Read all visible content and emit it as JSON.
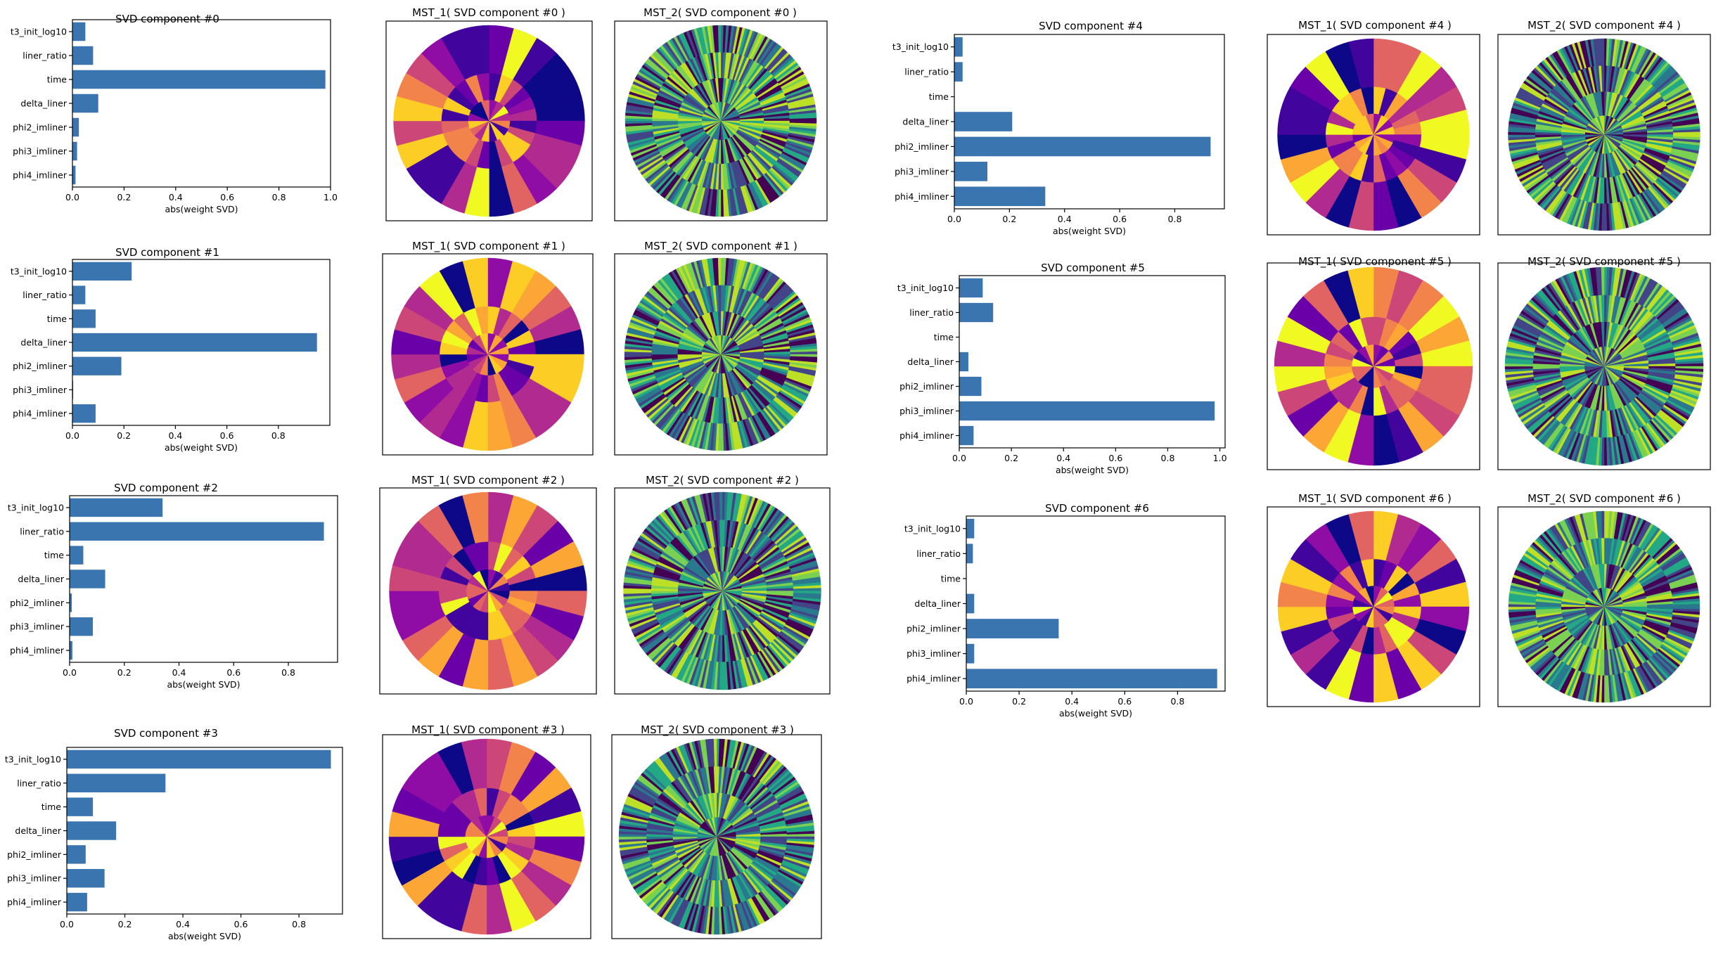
{
  "bar_charts": [
    {
      "title": "SVD component #0",
      "xlabel": "abs(weight SVD)",
      "categories": [
        "t3_init_log10",
        "liner_ratio",
        "time",
        "delta_liner",
        "phi2_imliner",
        "phi3_imliner",
        "phi4_imliner"
      ],
      "values": [
        0.05,
        0.08,
        0.98,
        0.1,
        0.025,
        0.018,
        0.012
      ],
      "ticks": [
        "0.0",
        "0.2",
        "0.4",
        "0.6",
        "0.8",
        "1.0"
      ],
      "tick_values": [
        0,
        0.2,
        0.4,
        0.6,
        0.8,
        1.0
      ]
    },
    {
      "title": "SVD component #1",
      "xlabel": "abs(weight SVD)",
      "categories": [
        "t3_init_log10",
        "liner_ratio",
        "time",
        "delta_liner",
        "phi2_imliner",
        "phi3_imliner",
        "phi4_imliner"
      ],
      "values": [
        0.23,
        0.05,
        0.09,
        0.95,
        0.19,
        0.003,
        0.09
      ],
      "ticks": [
        "0.0",
        "0.2",
        "0.4",
        "0.6",
        "0.8"
      ],
      "tick_values": [
        0,
        0.2,
        0.4,
        0.6,
        0.8
      ]
    },
    {
      "title": "SVD component #2",
      "xlabel": "abs(weight SVD)",
      "categories": [
        "t3_init_log10",
        "liner_ratio",
        "time",
        "delta_liner",
        "phi2_imliner",
        "phi3_imliner",
        "phi4_imliner"
      ],
      "values": [
        0.34,
        0.93,
        0.05,
        0.13,
        0.008,
        0.085,
        0.01
      ],
      "ticks": [
        "0.0",
        "0.2",
        "0.4",
        "0.6",
        "0.8"
      ],
      "tick_values": [
        0,
        0.2,
        0.4,
        0.6,
        0.8
      ]
    },
    {
      "title": "SVD component #3",
      "xlabel": "abs(weight SVD)",
      "categories": [
        "t3_init_log10",
        "liner_ratio",
        "time",
        "delta_liner",
        "phi2_imliner",
        "phi3_imliner",
        "phi4_imliner"
      ],
      "values": [
        0.91,
        0.34,
        0.09,
        0.17,
        0.065,
        0.13,
        0.07
      ],
      "ticks": [
        "0.0",
        "0.2",
        "0.4",
        "0.6",
        "0.8"
      ],
      "tick_values": [
        0,
        0.2,
        0.4,
        0.6,
        0.8
      ]
    },
    {
      "title": "SVD component #4",
      "xlabel": "abs(weight SVD)",
      "categories": [
        "t3_init_log10",
        "liner_ratio",
        "time",
        "delta_liner",
        "phi2_imliner",
        "phi3_imliner",
        "phi4_imliner"
      ],
      "values": [
        0.03,
        0.03,
        0.0,
        0.21,
        0.93,
        0.12,
        0.33
      ],
      "ticks": [
        "0.0",
        "0.2",
        "0.4",
        "0.6",
        "0.8"
      ],
      "tick_values": [
        0,
        0.2,
        0.4,
        0.6,
        0.8
      ]
    },
    {
      "title": "SVD component #5",
      "xlabel": "abs(weight SVD)",
      "categories": [
        "t3_init_log10",
        "liner_ratio",
        "time",
        "delta_liner",
        "phi2_imliner",
        "phi3_imliner",
        "phi4_imliner"
      ],
      "values": [
        0.09,
        0.13,
        0.0,
        0.035,
        0.085,
        0.98,
        0.055
      ],
      "ticks": [
        "0.0",
        "0.2",
        "0.4",
        "0.6",
        "0.8",
        "1.0"
      ],
      "tick_values": [
        0,
        0.2,
        0.4,
        0.6,
        0.8,
        1.0
      ]
    },
    {
      "title": "SVD component #6",
      "xlabel": "abs(weight SVD)",
      "categories": [
        "t3_init_log10",
        "liner_ratio",
        "time",
        "delta_liner",
        "phi2_imliner",
        "phi3_imliner",
        "phi4_imliner"
      ],
      "values": [
        0.03,
        0.025,
        0.0,
        0.03,
        0.35,
        0.03,
        0.95
      ],
      "ticks": [
        "0.0",
        "0.2",
        "0.4",
        "0.6",
        "0.8"
      ],
      "tick_values": [
        0,
        0.2,
        0.4,
        0.6,
        0.8
      ]
    }
  ],
  "mst1_titles": [
    "MST_1( SVD component #0 )",
    "MST_1( SVD component #1 )",
    "MST_1( SVD component #2 )",
    "MST_1( SVD component #3 )",
    "MST_1( SVD component #4 )",
    "MST_1( SVD component #5 )",
    "MST_1( SVD component #6 )"
  ],
  "mst2_titles": [
    "MST_2( SVD component #0 )",
    "MST_2( SVD component #1 )",
    "MST_2( SVD component #2 )",
    "MST_2( SVD component #3 )",
    "MST_2( SVD component #4 )",
    "MST_2( SVD component #5 )",
    "MST_2( SVD component #6 )"
  ],
  "chart_data": [
    {
      "type": "bar",
      "orientation": "horizontal",
      "title": "SVD component #0",
      "xlabel": "abs(weight SVD)",
      "categories": [
        "t3_init_log10",
        "liner_ratio",
        "time",
        "delta_liner",
        "phi2_imliner",
        "phi3_imliner",
        "phi4_imliner"
      ],
      "values": [
        0.05,
        0.08,
        0.98,
        0.1,
        0.025,
        0.018,
        0.012
      ],
      "xlim": [
        0,
        1.0
      ]
    },
    {
      "type": "bar",
      "orientation": "horizontal",
      "title": "SVD component #1",
      "xlabel": "abs(weight SVD)",
      "categories": [
        "t3_init_log10",
        "liner_ratio",
        "time",
        "delta_liner",
        "phi2_imliner",
        "phi3_imliner",
        "phi4_imliner"
      ],
      "values": [
        0.23,
        0.05,
        0.09,
        0.95,
        0.19,
        0.003,
        0.09
      ],
      "xlim": [
        0,
        1.0
      ]
    },
    {
      "type": "bar",
      "orientation": "horizontal",
      "title": "SVD component #2",
      "xlabel": "abs(weight SVD)",
      "categories": [
        "t3_init_log10",
        "liner_ratio",
        "time",
        "delta_liner",
        "phi2_imliner",
        "phi3_imliner",
        "phi4_imliner"
      ],
      "values": [
        0.34,
        0.93,
        0.05,
        0.13,
        0.008,
        0.085,
        0.01
      ],
      "xlim": [
        0,
        0.98
      ]
    },
    {
      "type": "bar",
      "orientation": "horizontal",
      "title": "SVD component #3",
      "xlabel": "abs(weight SVD)",
      "categories": [
        "t3_init_log10",
        "liner_ratio",
        "time",
        "delta_liner",
        "phi2_imliner",
        "phi3_imliner",
        "phi4_imliner"
      ],
      "values": [
        0.91,
        0.34,
        0.09,
        0.17,
        0.065,
        0.13,
        0.07
      ],
      "xlim": [
        0,
        0.95
      ]
    },
    {
      "type": "bar",
      "orientation": "horizontal",
      "title": "SVD component #4",
      "xlabel": "abs(weight SVD)",
      "categories": [
        "t3_init_log10",
        "liner_ratio",
        "time",
        "delta_liner",
        "phi2_imliner",
        "phi3_imliner",
        "phi4_imliner"
      ],
      "values": [
        0.03,
        0.03,
        0.0,
        0.21,
        0.93,
        0.12,
        0.33
      ],
      "xlim": [
        0,
        0.98
      ]
    },
    {
      "type": "bar",
      "orientation": "horizontal",
      "title": "SVD component #5",
      "xlabel": "abs(weight SVD)",
      "categories": [
        "t3_init_log10",
        "liner_ratio",
        "time",
        "delta_liner",
        "phi2_imliner",
        "phi3_imliner",
        "phi4_imliner"
      ],
      "values": [
        0.09,
        0.13,
        0.0,
        0.035,
        0.085,
        0.98,
        0.055
      ],
      "xlim": [
        0,
        1.02
      ]
    },
    {
      "type": "bar",
      "orientation": "horizontal",
      "title": "SVD component #6",
      "xlabel": "abs(weight SVD)",
      "categories": [
        "t3_init_log10",
        "liner_ratio",
        "time",
        "delta_liner",
        "phi2_imliner",
        "phi3_imliner",
        "phi4_imliner"
      ],
      "values": [
        0.03,
        0.025,
        0.0,
        0.03,
        0.35,
        0.03,
        0.95
      ],
      "xlim": [
        0,
        0.98
      ]
    }
  ],
  "colors": {
    "bar": "#3b75af",
    "plasma": [
      "#0d0887",
      "#41049d",
      "#6a00a8",
      "#8f0da4",
      "#b12a90",
      "#cc4778",
      "#e16462",
      "#f2844b",
      "#fca636",
      "#fcce25",
      "#f0f921"
    ],
    "viridis": [
      "#440154",
      "#414487",
      "#2a788e",
      "#22a884",
      "#7ad151",
      "#bddf26"
    ]
  }
}
